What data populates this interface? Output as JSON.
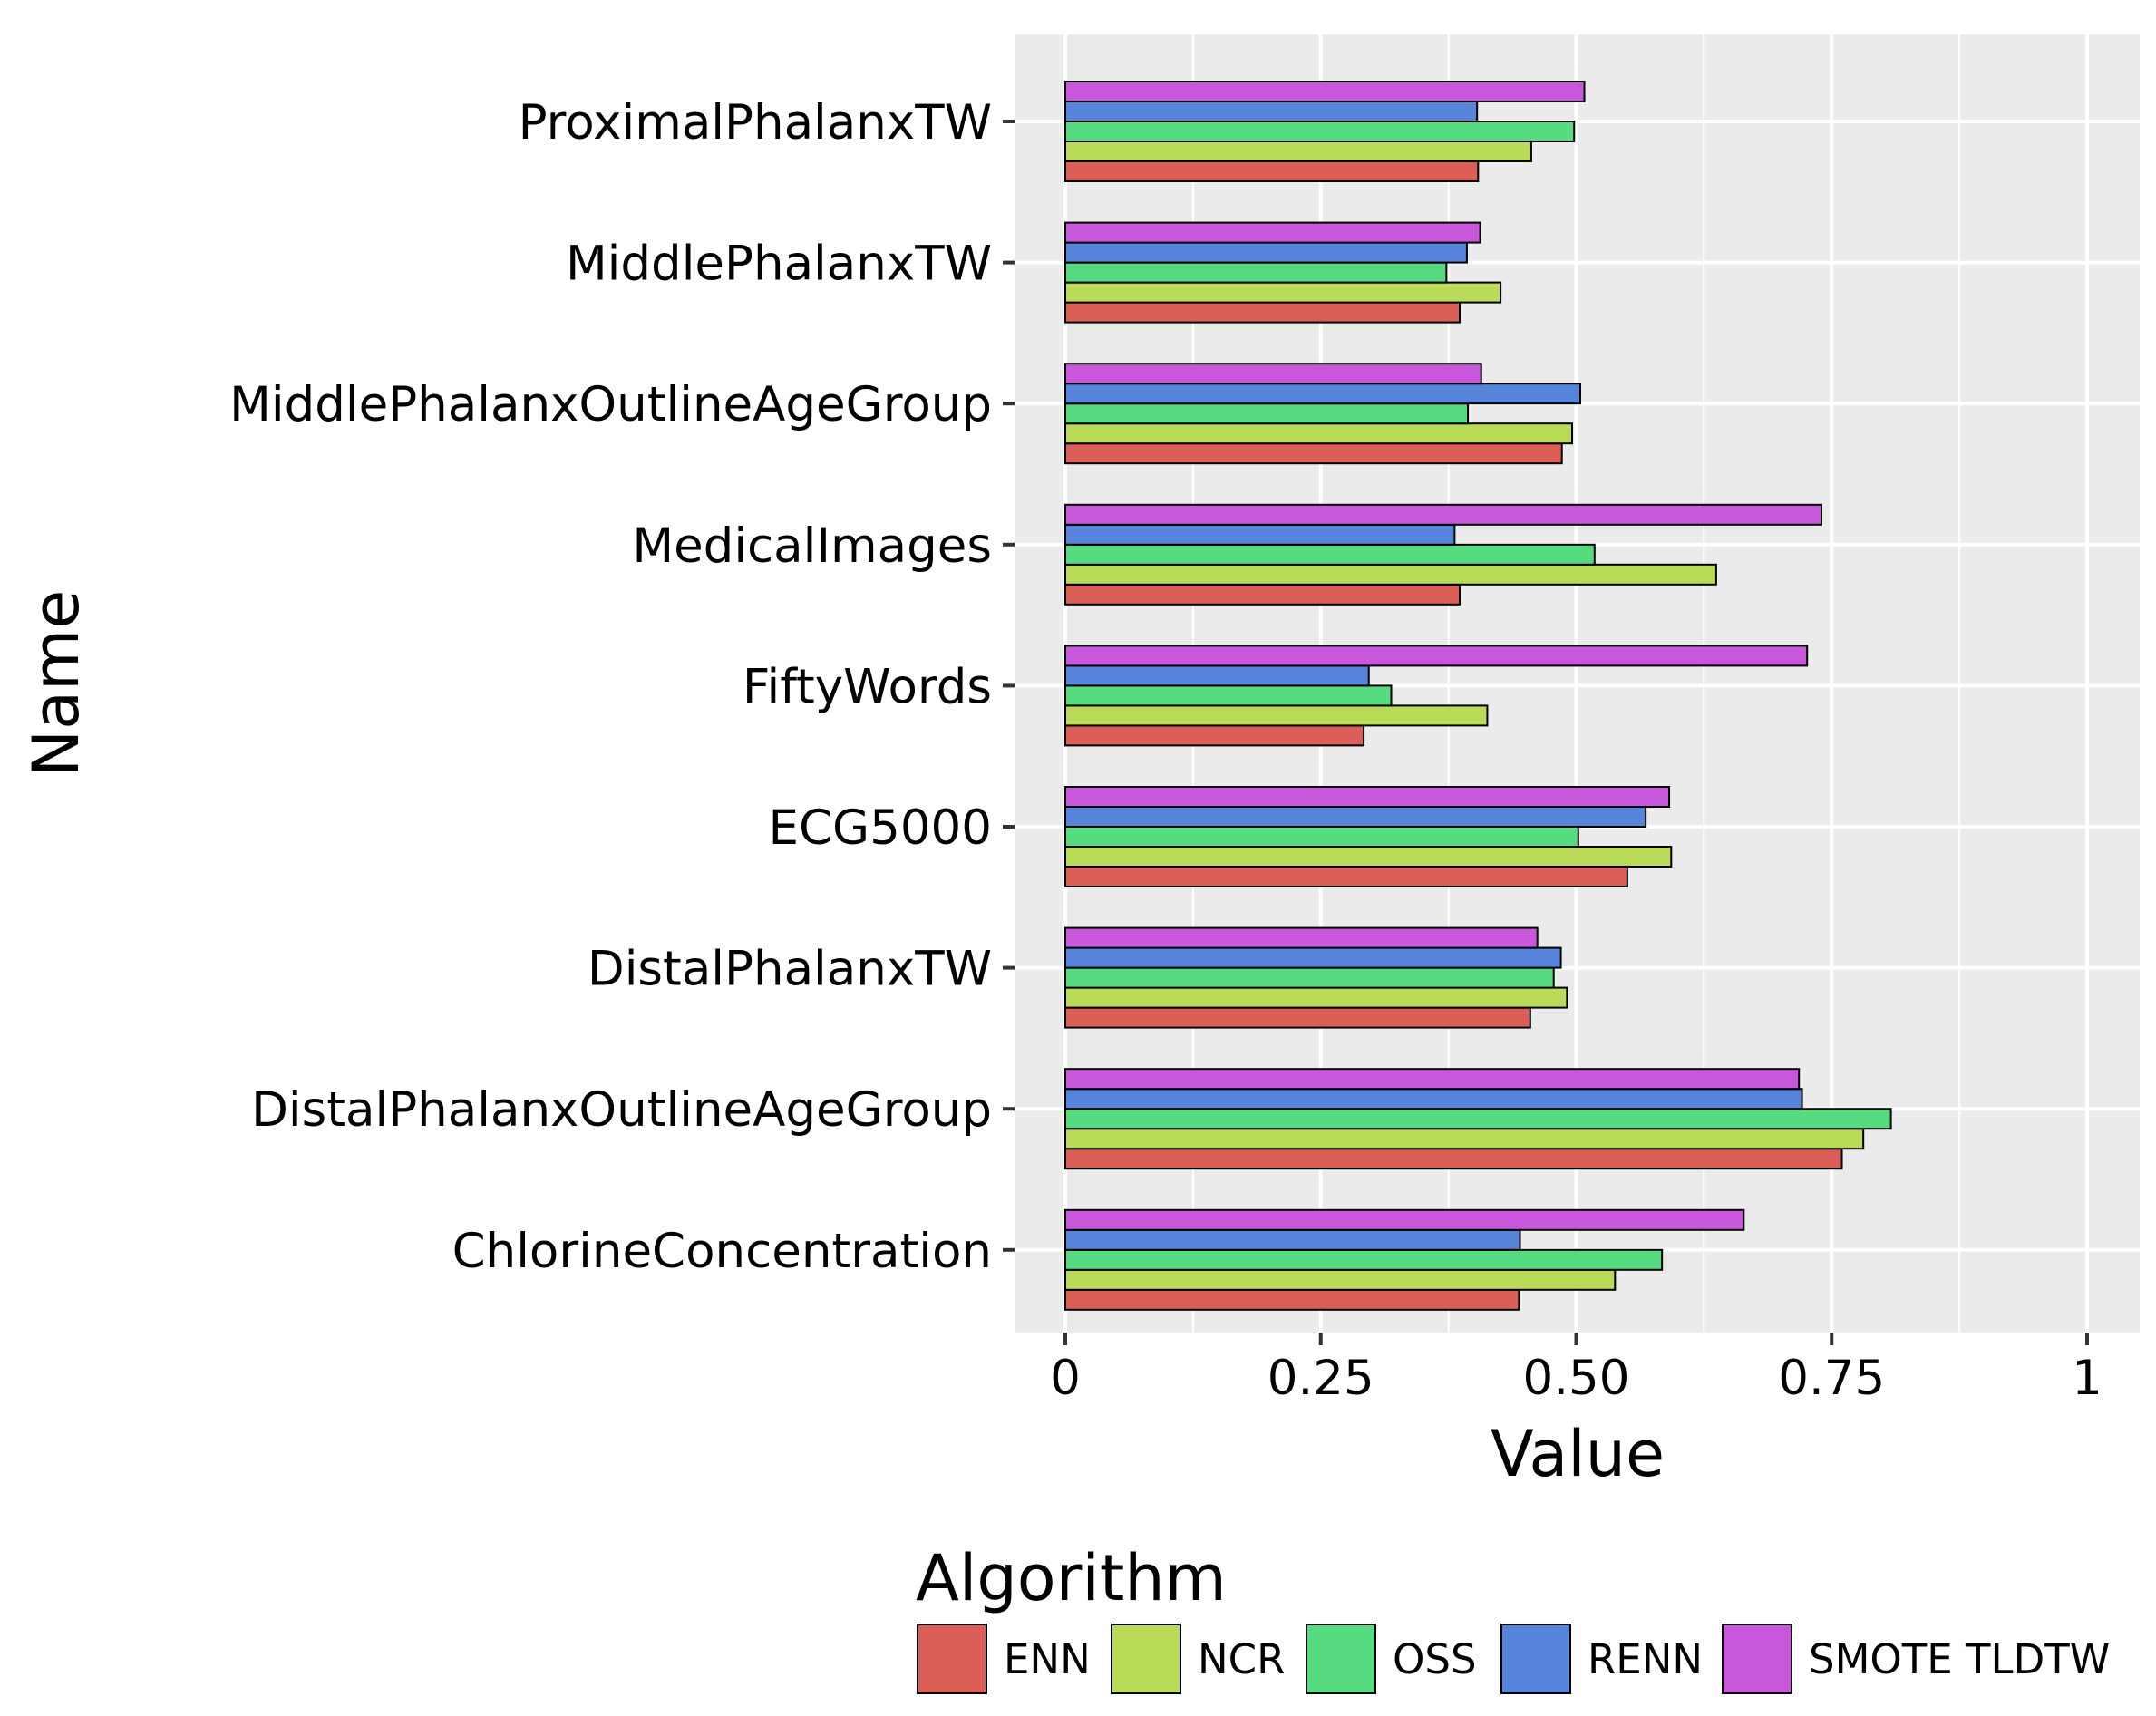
{
  "chart_data": {
    "type": "bar",
    "orientation": "horizontal",
    "xlabel": "Value",
    "ylabel": "Name",
    "xlim": [
      0,
      1
    ],
    "x_ticks": [
      {
        "value": 0,
        "label": "0"
      },
      {
        "value": 0.25,
        "label": "0.25"
      },
      {
        "value": 0.5,
        "label": "0.50"
      },
      {
        "value": 0.75,
        "label": "0.75"
      },
      {
        "value": 1,
        "label": "1"
      }
    ],
    "grid": true,
    "background": "#ebebeb",
    "categories": [
      "ProximalPhalanxTW",
      "MiddlePhalanxTW",
      "MiddlePhalanxOutlineAgeGroup",
      "MedicalImages",
      "FiftyWords",
      "ECG5000",
      "DistalPhalanxTW",
      "DistalPhalanxOutlineAgeGroup",
      "ChlorineConcentration"
    ],
    "series": [
      {
        "name": "ENN",
        "color": "#db5f57",
        "values": [
          0.404,
          0.386,
          0.486,
          0.386,
          0.292,
          0.55,
          0.455,
          0.76,
          0.444
        ]
      },
      {
        "name": "NCR",
        "color": "#b9db57",
        "values": [
          0.456,
          0.426,
          0.496,
          0.637,
          0.413,
          0.593,
          0.491,
          0.781,
          0.538
        ]
      },
      {
        "name": "OSS",
        "color": "#57db80",
        "values": [
          0.498,
          0.373,
          0.394,
          0.518,
          0.319,
          0.502,
          0.478,
          0.808,
          0.584
        ]
      },
      {
        "name": "RENN",
        "color": "#5784db",
        "values": [
          0.403,
          0.393,
          0.504,
          0.381,
          0.297,
          0.568,
          0.485,
          0.721,
          0.445
        ]
      },
      {
        "name": "SMOTE TLDTW",
        "color": "#c957db",
        "values": [
          0.508,
          0.406,
          0.407,
          0.74,
          0.726,
          0.591,
          0.462,
          0.718,
          0.664
        ]
      }
    ],
    "legend": {
      "title": "Algorithm",
      "placement": "bottom"
    }
  }
}
